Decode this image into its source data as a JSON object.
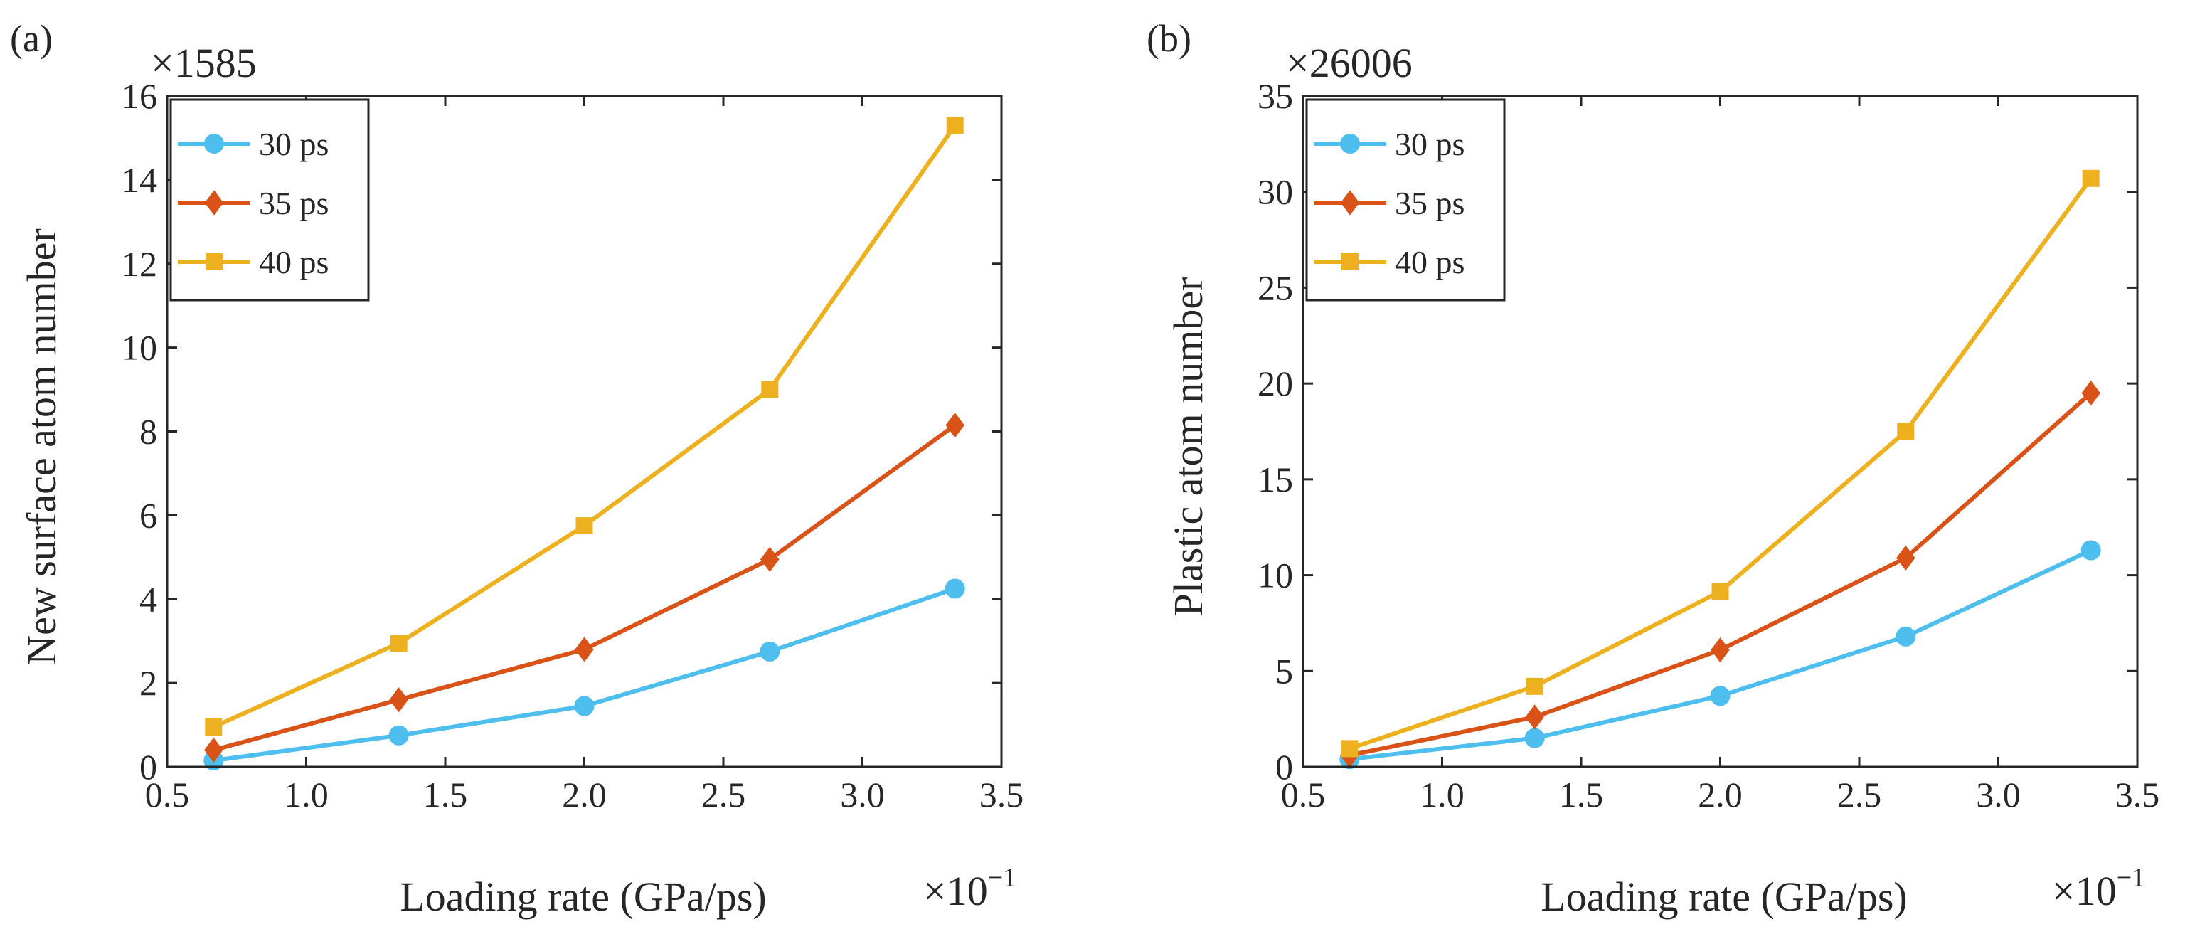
{
  "chart_data": [
    {
      "type": "line",
      "panel_label": "(a)",
      "xlabel": "Loading rate (GPa/ps)",
      "ylabel": "New surface atom number",
      "y_multiplier": "×1585",
      "x_multiplier_base": "×10",
      "x_multiplier_exp": "−1",
      "xlim": [
        0.5,
        3.5
      ],
      "ylim": [
        0,
        16
      ],
      "xticks": [
        0.5,
        1.0,
        1.5,
        2.0,
        2.5,
        3.0,
        3.5
      ],
      "xtick_labels": [
        "0.5",
        "1.0",
        "1.5",
        "2.0",
        "2.5",
        "3.0",
        "3.5"
      ],
      "yticks": [
        0,
        2,
        4,
        6,
        8,
        10,
        12,
        14,
        16
      ],
      "ytick_labels": [
        "0",
        "2",
        "4",
        "6",
        "8",
        "10",
        "12",
        "14",
        "16"
      ],
      "x": [
        0.667,
        1.333,
        2.0,
        2.667,
        3.333
      ],
      "legend_position": "top-left",
      "series": [
        {
          "name": "30 ps",
          "color": "#4DBEEE",
          "marker": "circle",
          "values": [
            0.15,
            0.75,
            1.45,
            2.75,
            4.25
          ]
        },
        {
          "name": "35 ps",
          "color": "#D95319",
          "marker": "diamond",
          "values": [
            0.4,
            1.6,
            2.8,
            4.95,
            8.15
          ]
        },
        {
          "name": "40 ps",
          "color": "#EDB120",
          "marker": "square",
          "values": [
            0.95,
            2.95,
            5.75,
            9.0,
            15.3
          ]
        }
      ]
    },
    {
      "type": "line",
      "panel_label": "(b)",
      "xlabel": "Loading rate (GPa/ps)",
      "ylabel": "Plastic atom number",
      "y_multiplier": "×26006",
      "x_multiplier_base": "×10",
      "x_multiplier_exp": "−1",
      "xlim": [
        0.5,
        3.5
      ],
      "ylim": [
        0,
        35
      ],
      "xticks": [
        0.5,
        1.0,
        1.5,
        2.0,
        2.5,
        3.0,
        3.5
      ],
      "xtick_labels": [
        "0.5",
        "1.0",
        "1.5",
        "2.0",
        "2.5",
        "3.0",
        "3.5"
      ],
      "yticks": [
        0,
        5,
        10,
        15,
        20,
        25,
        30,
        35
      ],
      "ytick_labels": [
        "0",
        "5",
        "10",
        "15",
        "20",
        "25",
        "30",
        "35"
      ],
      "x": [
        0.667,
        1.333,
        2.0,
        2.667,
        3.333
      ],
      "legend_position": "top-left",
      "series": [
        {
          "name": "30 ps",
          "color": "#4DBEEE",
          "marker": "circle",
          "values": [
            0.4,
            1.5,
            3.7,
            6.8,
            11.3
          ]
        },
        {
          "name": "35 ps",
          "color": "#D95319",
          "marker": "diamond",
          "values": [
            0.6,
            2.6,
            6.1,
            10.9,
            19.5
          ]
        },
        {
          "name": "40 ps",
          "color": "#EDB120",
          "marker": "square",
          "values": [
            0.95,
            4.2,
            9.15,
            17.5,
            30.7
          ]
        }
      ]
    }
  ]
}
